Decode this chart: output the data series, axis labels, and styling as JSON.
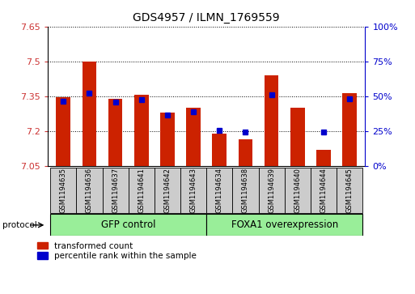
{
  "title": "GDS4957 / ILMN_1769559",
  "samples": [
    "GSM1194635",
    "GSM1194636",
    "GSM1194637",
    "GSM1194641",
    "GSM1194642",
    "GSM1194643",
    "GSM1194634",
    "GSM1194638",
    "GSM1194639",
    "GSM1194640",
    "GSM1194644",
    "GSM1194645"
  ],
  "red_values": [
    7.345,
    7.5,
    7.34,
    7.355,
    7.28,
    7.3,
    7.19,
    7.165,
    7.44,
    7.3,
    7.12,
    7.365
  ],
  "blue_values": [
    7.33,
    7.365,
    7.325,
    7.335,
    7.27,
    7.285,
    7.205,
    7.195,
    7.355,
    null,
    7.195,
    7.34
  ],
  "ymin": 7.05,
  "ymax": 7.65,
  "yticks_left": [
    7.05,
    7.2,
    7.35,
    7.5,
    7.65
  ],
  "yticks_left_labels": [
    "7.05",
    "7.2",
    "7.35",
    "7.5",
    "7.65"
  ],
  "yticks_right_vals": [
    0,
    25,
    50,
    75,
    100
  ],
  "yticks_right_labels": [
    "0%",
    "25%",
    "50%",
    "75%",
    "100%"
  ],
  "group1_label": "GFP control",
  "group2_label": "FOXA1 overexpression",
  "legend_red": "transformed count",
  "legend_blue": "percentile rank within the sample",
  "protocol_label": "protocol",
  "bar_color": "#cc2200",
  "dot_color": "#0000cc",
  "group_bg_color": "#99ee99",
  "sample_bg_color": "#cccccc",
  "bar_width": 0.55,
  "bar_bottom": 7.05
}
